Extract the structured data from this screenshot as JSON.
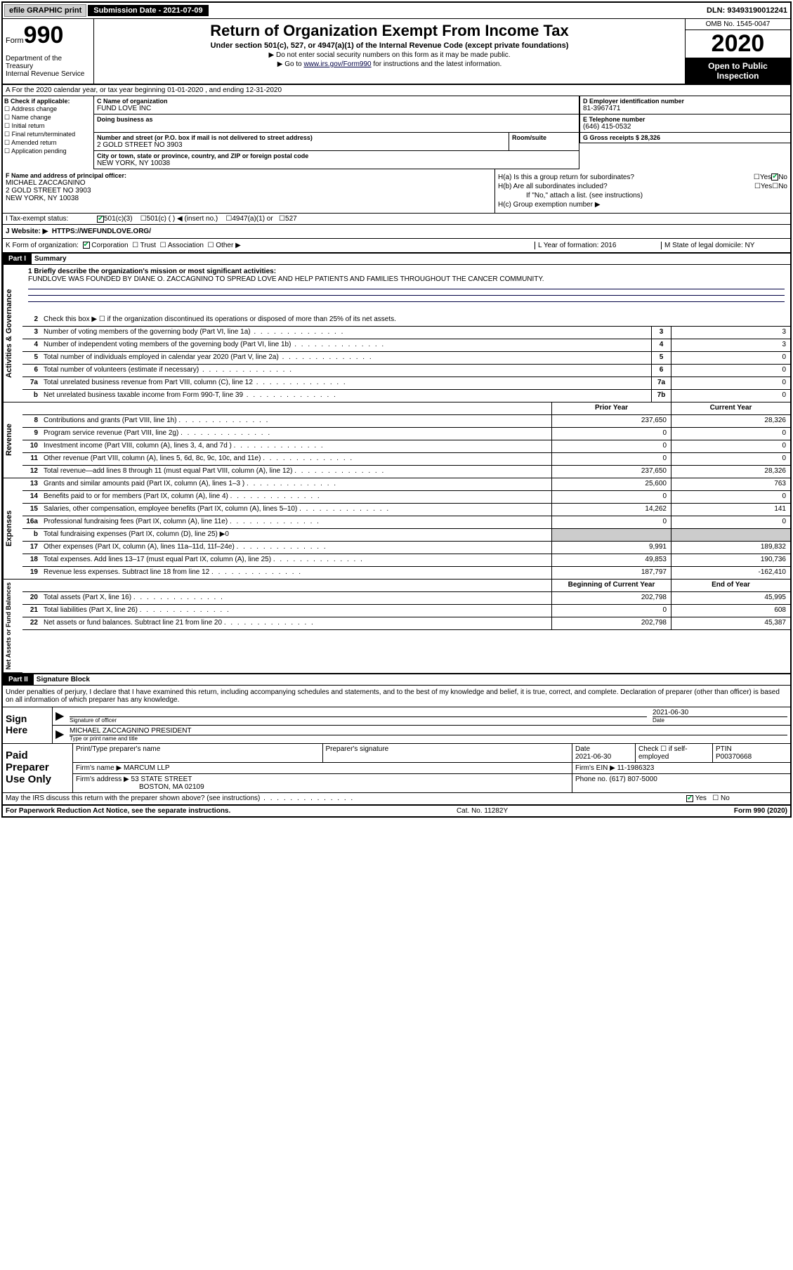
{
  "topbar": {
    "efile": "efile GRAPHIC print",
    "submission_label": "Submission Date - 2021-07-09",
    "dln": "DLN: 93493190012241"
  },
  "header": {
    "form_prefix": "Form",
    "form_num": "990",
    "dept": "Department of the Treasury\nInternal Revenue Service",
    "title": "Return of Organization Exempt From Income Tax",
    "subtitle": "Under section 501(c), 527, or 4947(a)(1) of the Internal Revenue Code (except private foundations)",
    "note1": "▶ Do not enter social security numbers on this form as it may be made public.",
    "note2_pre": "▶ Go to ",
    "note2_link": "www.irs.gov/Form990",
    "note2_post": " for instructions and the latest information.",
    "omb": "OMB No. 1545-0047",
    "year": "2020",
    "open": "Open to Public Inspection"
  },
  "line_a": "A For the 2020 calendar year, or tax year beginning 01-01-2020   , and ending 12-31-2020",
  "section_b": {
    "label": "B Check if applicable:",
    "items": [
      "Address change",
      "Name change",
      "Initial return",
      "Final return/terminated",
      "Amended return",
      "Application pending"
    ]
  },
  "section_c": {
    "name_lbl": "C Name of organization",
    "name": "FUND LOVE INC",
    "dba_lbl": "Doing business as",
    "addr_lbl": "Number and street (or P.O. box if mail is not delivered to street address)",
    "room_lbl": "Room/suite",
    "addr": "2 GOLD STREET NO 3903",
    "city_lbl": "City or town, state or province, country, and ZIP or foreign postal code",
    "city": "NEW YORK, NY  10038"
  },
  "section_d": {
    "lbl": "D Employer identification number",
    "val": "81-3967471"
  },
  "section_e": {
    "lbl": "E Telephone number",
    "val": "(646) 415-0532"
  },
  "section_g": {
    "lbl": "G Gross receipts $ 28,326"
  },
  "section_f": {
    "lbl": "F  Name and address of principal officer:",
    "name": "MICHAEL ZACCAGNINO",
    "addr1": "2 GOLD STREET NO 3903",
    "addr2": "NEW YORK, NY 10038"
  },
  "section_h": {
    "ha": "H(a)  Is this a group return for subordinates?",
    "hb": "H(b)  Are all subordinates included?",
    "hb_note": "If \"No,\" attach a list. (see instructions)",
    "hc": "H(c)  Group exemption number ▶",
    "yes": "Yes",
    "no": "No"
  },
  "tax_status": {
    "lbl": "I   Tax-exempt status:",
    "opts": [
      "501(c)(3)",
      "501(c) (  ) ◀ (insert no.)",
      "4947(a)(1) or",
      "527"
    ]
  },
  "website": {
    "lbl": "J   Website: ▶",
    "val": "HTTPS://WEFUNDLOVE.ORG/"
  },
  "kform": {
    "k": "K Form of organization:",
    "opts": [
      "Corporation",
      "Trust",
      "Association",
      "Other ▶"
    ],
    "l": "L Year of formation: 2016",
    "m": "M State of legal domicile: NY"
  },
  "part1": {
    "hdr": "Part I",
    "title": "Summary",
    "q1": "1  Briefly describe the organization's mission or most significant activities:",
    "mission": "FUNDLOVE WAS FOUNDED BY DIANE O. ZACCAGNINO TO SPREAD LOVE AND HELP PATIENTS AND FAMILIES THROUGHOUT THE CANCER COMMUNITY.",
    "q2": "Check this box ▶ ☐  if the organization discontinued its operations or disposed of more than 25% of its net assets."
  },
  "gov_lines": [
    {
      "n": "3",
      "t": "Number of voting members of the governing body (Part VI, line 1a)",
      "b": "3",
      "v": "3"
    },
    {
      "n": "4",
      "t": "Number of independent voting members of the governing body (Part VI, line 1b)",
      "b": "4",
      "v": "3"
    },
    {
      "n": "5",
      "t": "Total number of individuals employed in calendar year 2020 (Part V, line 2a)",
      "b": "5",
      "v": "0"
    },
    {
      "n": "6",
      "t": "Total number of volunteers (estimate if necessary)",
      "b": "6",
      "v": "0"
    },
    {
      "n": "7a",
      "t": "Total unrelated business revenue from Part VIII, column (C), line 12",
      "b": "7a",
      "v": "0"
    },
    {
      "n": "b",
      "t": "Net unrelated business taxable income from Form 990-T, line 39",
      "b": "7b",
      "v": "0"
    }
  ],
  "col_hdrs": {
    "prior": "Prior Year",
    "current": "Current Year"
  },
  "rev_lines": [
    {
      "n": "8",
      "t": "Contributions and grants (Part VIII, line 1h)",
      "p": "237,650",
      "c": "28,326"
    },
    {
      "n": "9",
      "t": "Program service revenue (Part VIII, line 2g)",
      "p": "0",
      "c": "0"
    },
    {
      "n": "10",
      "t": "Investment income (Part VIII, column (A), lines 3, 4, and 7d )",
      "p": "0",
      "c": "0"
    },
    {
      "n": "11",
      "t": "Other revenue (Part VIII, column (A), lines 5, 6d, 8c, 9c, 10c, and 11e)",
      "p": "0",
      "c": "0"
    },
    {
      "n": "12",
      "t": "Total revenue—add lines 8 through 11 (must equal Part VIII, column (A), line 12)",
      "p": "237,650",
      "c": "28,326"
    }
  ],
  "exp_lines": [
    {
      "n": "13",
      "t": "Grants and similar amounts paid (Part IX, column (A), lines 1–3 )",
      "p": "25,600",
      "c": "763"
    },
    {
      "n": "14",
      "t": "Benefits paid to or for members (Part IX, column (A), line 4)",
      "p": "0",
      "c": "0"
    },
    {
      "n": "15",
      "t": "Salaries, other compensation, employee benefits (Part IX, column (A), lines 5–10)",
      "p": "14,262",
      "c": "141"
    },
    {
      "n": "16a",
      "t": "Professional fundraising fees (Part IX, column (A), line 11e)",
      "p": "0",
      "c": "0"
    },
    {
      "n": "b",
      "t": "Total fundraising expenses (Part IX, column (D), line 25) ▶0",
      "p": "",
      "c": "",
      "shade": true
    },
    {
      "n": "17",
      "t": "Other expenses (Part IX, column (A), lines 11a–11d, 11f–24e)",
      "p": "9,991",
      "c": "189,832"
    },
    {
      "n": "18",
      "t": "Total expenses. Add lines 13–17 (must equal Part IX, column (A), line 25)",
      "p": "49,853",
      "c": "190,736"
    },
    {
      "n": "19",
      "t": "Revenue less expenses. Subtract line 18 from line 12",
      "p": "187,797",
      "c": "-162,410"
    }
  ],
  "net_hdrs": {
    "beg": "Beginning of Current Year",
    "end": "End of Year"
  },
  "net_lines": [
    {
      "n": "20",
      "t": "Total assets (Part X, line 16)",
      "p": "202,798",
      "c": "45,995"
    },
    {
      "n": "21",
      "t": "Total liabilities (Part X, line 26)",
      "p": "0",
      "c": "608"
    },
    {
      "n": "22",
      "t": "Net assets or fund balances. Subtract line 21 from line 20",
      "p": "202,798",
      "c": "45,387"
    }
  ],
  "part2": {
    "hdr": "Part II",
    "title": "Signature Block",
    "decl": "Under penalties of perjury, I declare that I have examined this return, including accompanying schedules and statements, and to the best of my knowledge and belief, it is true, correct, and complete. Declaration of preparer (other than officer) is based on all information of which preparer has any knowledge."
  },
  "sign": {
    "here": "Sign Here",
    "sig_lbl": "Signature of officer",
    "date_lbl": "Date",
    "date": "2021-06-30",
    "name": "MICHAEL ZACCAGNINO  PRESIDENT",
    "name_lbl": "Type or print name and title"
  },
  "prep": {
    "title": "Paid Preparer Use Only",
    "cols": [
      "Print/Type preparer's name",
      "Preparer's signature",
      "Date",
      "",
      "PTIN"
    ],
    "date": "2021-06-30",
    "check_lbl": "Check ☐ if self-employed",
    "ptin": "P00370668",
    "firm_lbl": "Firm's name    ▶",
    "firm": "MARCUM LLP",
    "ein_lbl": "Firm's EIN ▶",
    "ein": "11-1986323",
    "addr_lbl": "Firm's address ▶",
    "addr1": "53 STATE STREET",
    "addr2": "BOSTON, MA  02109",
    "phone_lbl": "Phone no.",
    "phone": "(617) 807-5000",
    "discuss": "May the IRS discuss this return with the preparer shown above? (see instructions)"
  },
  "footer": {
    "left": "For Paperwork Reduction Act Notice, see the separate instructions.",
    "mid": "Cat. No. 11282Y",
    "right": "Form 990 (2020)"
  },
  "sidebars": {
    "gov": "Activities & Governance",
    "rev": "Revenue",
    "exp": "Expenses",
    "net": "Net Assets or Fund Balances"
  }
}
